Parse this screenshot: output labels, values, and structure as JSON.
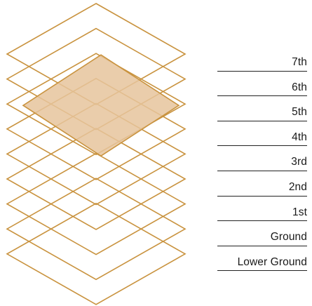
{
  "floors": [
    {
      "label": "7th",
      "selected": false
    },
    {
      "label": "6th",
      "selected": false
    },
    {
      "label": "5th",
      "selected": true
    },
    {
      "label": "4th",
      "selected": false
    },
    {
      "label": "3rd",
      "selected": false
    },
    {
      "label": "2nd",
      "selected": false
    },
    {
      "label": "1st",
      "selected": false
    },
    {
      "label": "Ground",
      "selected": false
    },
    {
      "label": "Lower Ground",
      "selected": false
    }
  ],
  "colors": {
    "outline": "#c9933f",
    "selected_fill": "#e6c49c",
    "divider": "#222222",
    "text": "#1a1a1a"
  }
}
